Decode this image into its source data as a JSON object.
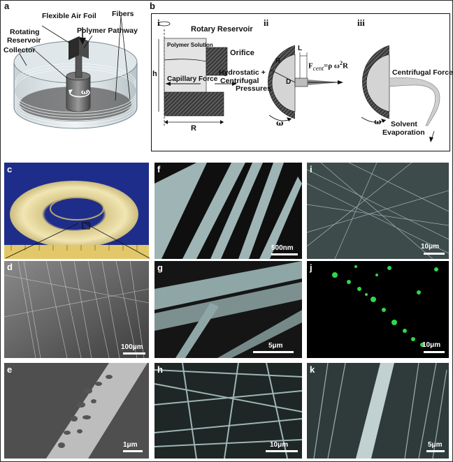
{
  "panel_labels": {
    "a": "a",
    "b": "b",
    "c": "c",
    "d": "d",
    "e": "e",
    "f": "f",
    "g": "g",
    "h": "h",
    "i": "i",
    "j": "j",
    "k": "k"
  },
  "panel_a": {
    "flexible_air_foil": "Flexible Air Foil",
    "rotating_reservoir_line1": "Rotating",
    "rotating_reservoir_line2": "Reservoir",
    "polymer_pathway": "Polymer Pathway",
    "fibers": "Fibers",
    "collector": "Collector",
    "omega": "ω"
  },
  "panel_b": {
    "sub_i": "i",
    "sub_ii": "ii",
    "sub_iii": "iii",
    "rotary_reservoir": "Rotary Reservoir",
    "polymer_solution": "Polymer Solution",
    "orifice": "Orifice",
    "capillary_force": "Capillary Force",
    "hydrostatic": "Hydrostatic +",
    "centrifugal_pressures_1": "Centrifugal",
    "centrifugal_pressures_2": "Pressures",
    "h": "h",
    "R_i": "R",
    "R_ii": "R",
    "L": "L",
    "D": "D",
    "fcent_eq": "F",
    "fcent_sub": "cent",
    "fcent_rhs": "=ρ ω",
    "fcent_sup": "2",
    "fcent_end": "R",
    "omega": "ω",
    "centrifugal_force": "Centrifugal Force",
    "solvent": "Solvent",
    "evaporation": "Evaporation"
  },
  "scale_bars": {
    "d": "100μm",
    "e": "1μm",
    "f": "500nm",
    "g": "5μm",
    "h": "10μm",
    "i": "10μm",
    "j": "10μm",
    "k": "5μm"
  }
}
